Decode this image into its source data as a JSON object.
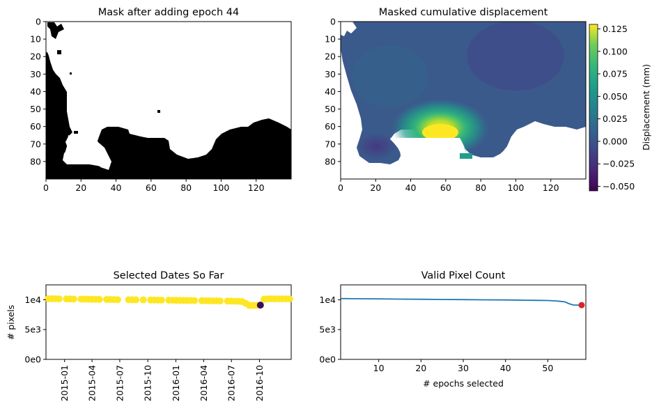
{
  "panels": {
    "mask": {
      "title": "Mask after adding epoch 44",
      "xticks": [
        0,
        20,
        40,
        60,
        80,
        100,
        120
      ],
      "yticks": [
        0,
        10,
        20,
        30,
        40,
        50,
        60,
        70,
        80
      ]
    },
    "disp": {
      "title": "Masked cumulative displacement",
      "xticks": [
        0,
        20,
        40,
        60,
        80,
        100,
        120
      ],
      "yticks": [
        0,
        10,
        20,
        30,
        40,
        50,
        60,
        70,
        80
      ]
    },
    "dates": {
      "title": "Selected Dates So Far",
      "ylabel": "# pixels",
      "yticks": [
        "0e0",
        "5e3",
        "1e4"
      ],
      "xticks": [
        "2015-01",
        "2015-04",
        "2015-07",
        "2015-10",
        "2016-01",
        "2016-04",
        "2016-07",
        "2016-10"
      ]
    },
    "count": {
      "title": "Valid Pixel Count",
      "xlabel": "# epochs selected",
      "yticks": [
        "0e0",
        "5e3",
        "1e4"
      ],
      "xticks": [
        "10",
        "20",
        "30",
        "40",
        "50"
      ]
    }
  },
  "colorbar": {
    "label": "Displacement (mm)",
    "ticks": [
      "0.125",
      "0.100",
      "0.075",
      "0.050",
      "0.025",
      "0.000",
      "−0.025",
      "−0.050"
    ],
    "colormap": "viridis",
    "range": [
      -0.055,
      0.13
    ]
  },
  "colors": {
    "scatter": "#fde725",
    "highlight": "#3b0f4f",
    "line": "#1f77b4",
    "last_point": "#d62728"
  },
  "chart_data": [
    {
      "type": "heatmap",
      "title": "Mask after adding epoch 44",
      "xlim": [
        0,
        140
      ],
      "ylim": [
        90,
        0
      ],
      "values": "binary mask (white = valid, black = masked)"
    },
    {
      "type": "heatmap",
      "title": "Masked cumulative displacement",
      "xlim": [
        0,
        140
      ],
      "ylim": [
        90,
        0
      ],
      "zlim": [
        -0.055,
        0.13
      ],
      "zlabel": "Displacement (mm)",
      "peak": {
        "x": 57,
        "y": 64,
        "value": 0.13
      }
    },
    {
      "type": "scatter",
      "title": "Selected Dates So Far",
      "ylabel": "# pixels",
      "ylim": [
        0,
        12500
      ],
      "x": [
        "2014-11-08",
        "2014-11-20",
        "2014-12-02",
        "2014-12-14",
        "2015-01-07",
        "2015-01-19",
        "2015-01-31",
        "2015-02-24",
        "2015-03-08",
        "2015-03-20",
        "2015-04-01",
        "2015-04-13",
        "2015-04-25",
        "2015-05-19",
        "2015-05-31",
        "2015-06-12",
        "2015-06-24",
        "2015-07-30",
        "2015-08-11",
        "2015-08-23",
        "2015-09-16",
        "2015-10-10",
        "2015-10-22",
        "2015-11-03",
        "2015-11-15",
        "2015-12-09",
        "2015-12-21",
        "2016-01-02",
        "2016-01-14",
        "2016-01-26",
        "2016-02-07",
        "2016-02-19",
        "2016-03-02",
        "2016-03-26",
        "2016-04-07",
        "2016-04-19",
        "2016-05-01",
        "2016-05-13",
        "2016-05-25",
        "2016-06-18",
        "2016-06-30",
        "2016-07-12",
        "2016-07-24",
        "2016-08-05",
        "2016-08-17",
        "2016-08-29",
        "2016-09-10",
        "2016-09-22",
        "2016-10-04",
        "2016-10-16",
        "2016-10-28",
        "2016-11-09",
        "2016-11-21",
        "2016-12-03",
        "2016-12-15",
        "2016-12-27",
        "2017-01-08"
      ],
      "y": [
        10180,
        10170,
        10160,
        10150,
        10140,
        10130,
        10120,
        10110,
        10100,
        10090,
        10080,
        10070,
        10060,
        10050,
        10040,
        10030,
        10020,
        10010,
        10000,
        9990,
        9980,
        9970,
        9960,
        9950,
        9940,
        9930,
        9920,
        9910,
        9900,
        9890,
        9880,
        9870,
        9860,
        9850,
        9840,
        9830,
        9820,
        9810,
        9800,
        9790,
        9780,
        9760,
        9740,
        9700,
        9400,
        9050,
        9050,
        9050,
        9100,
        10100,
        10150,
        10150,
        10150,
        10150,
        10150,
        10150,
        10150
      ],
      "highlight": {
        "x": "2016-10-04",
        "y": 9100
      }
    },
    {
      "type": "line",
      "title": "Valid Pixel Count",
      "xlabel": "# epochs selected",
      "xlim": [
        1,
        59
      ],
      "ylim": [
        0,
        12500
      ],
      "x": [
        1,
        5,
        10,
        15,
        20,
        25,
        30,
        35,
        40,
        42,
        45,
        48,
        50,
        52,
        53,
        54,
        55,
        56,
        57,
        58
      ],
      "y": [
        10200,
        10180,
        10150,
        10110,
        10080,
        10050,
        10020,
        9990,
        9960,
        9950,
        9920,
        9890,
        9870,
        9800,
        9730,
        9650,
        9350,
        9120,
        9100,
        9100
      ],
      "last_point": {
        "x": 58,
        "y": 9100
      }
    }
  ]
}
